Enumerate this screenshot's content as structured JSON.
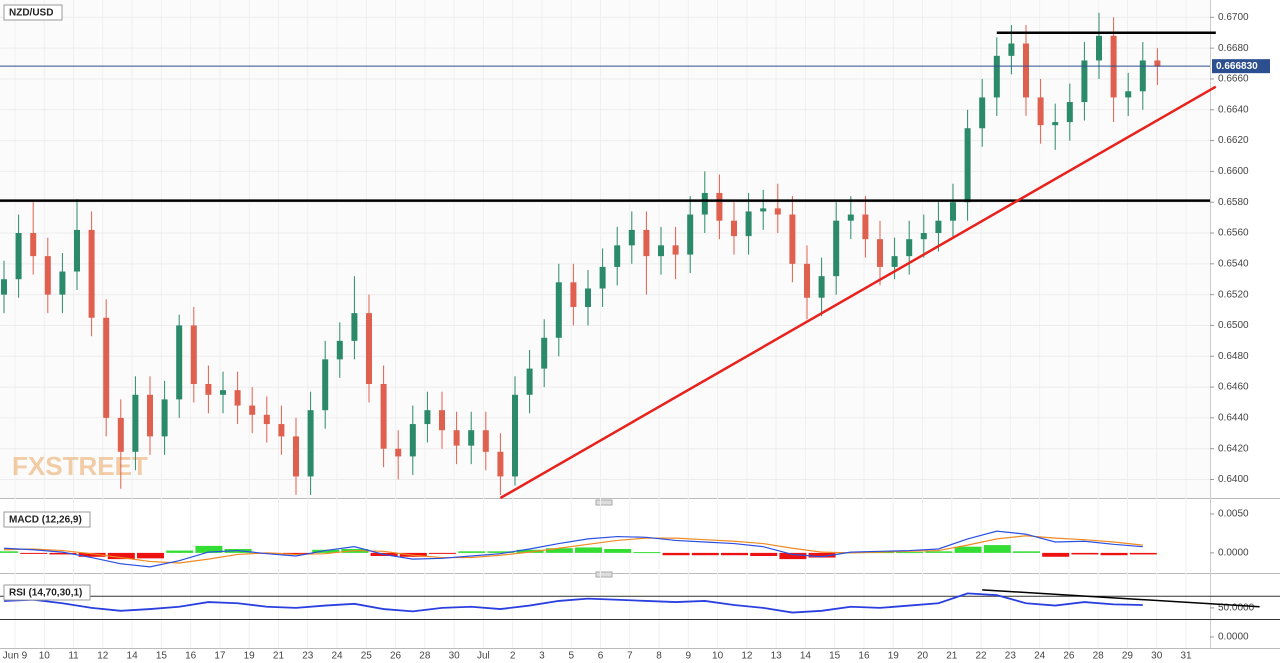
{
  "chart_data": [
    {
      "type": "candlestick",
      "title": "NZD/USD",
      "watermark": "FXSTREET",
      "open": [
        0.652,
        0.653,
        0.656,
        0.6545,
        0.652,
        0.6535,
        0.6562,
        0.6505,
        0.644,
        0.6418,
        0.6455,
        0.6428,
        0.6452,
        0.65,
        0.6462,
        0.6455,
        0.6458,
        0.6448,
        0.6442,
        0.6436,
        0.6428,
        0.6402,
        0.6445,
        0.6478,
        0.649,
        0.6508,
        0.6462,
        0.642,
        0.6415,
        0.6436,
        0.6445,
        0.6432,
        0.6422,
        0.6432,
        0.6418,
        0.6402,
        0.6455,
        0.6472,
        0.6492,
        0.6528,
        0.6512,
        0.6524,
        0.6538,
        0.6552,
        0.6562,
        0.6545,
        0.6552,
        0.6546,
        0.6572,
        0.6586,
        0.6568,
        0.6558,
        0.6574,
        0.6576,
        0.6572,
        0.654,
        0.6518,
        0.6532,
        0.6568,
        0.6572,
        0.6556,
        0.6538,
        0.6545,
        0.6556,
        0.656,
        0.6568,
        0.658,
        0.6628,
        0.6648,
        0.6675,
        0.6683,
        0.6648,
        0.663,
        0.6632,
        0.6645,
        0.6672,
        0.6688,
        0.6648,
        0.6652,
        0.6672
      ],
      "high": [
        0.6542,
        0.6572,
        0.658,
        0.6557,
        0.6547,
        0.6582,
        0.6574,
        0.6517,
        0.6452,
        0.6467,
        0.6467,
        0.6464,
        0.6507,
        0.6512,
        0.6474,
        0.647,
        0.647,
        0.646,
        0.6454,
        0.6448,
        0.644,
        0.6457,
        0.649,
        0.6502,
        0.6532,
        0.652,
        0.6474,
        0.6432,
        0.6448,
        0.6457,
        0.6457,
        0.6444,
        0.6444,
        0.6444,
        0.643,
        0.6467,
        0.6484,
        0.6504,
        0.654,
        0.654,
        0.6536,
        0.655,
        0.6564,
        0.6574,
        0.6574,
        0.6564,
        0.6564,
        0.6584,
        0.66,
        0.6598,
        0.658,
        0.6586,
        0.6588,
        0.6592,
        0.6584,
        0.6552,
        0.6544,
        0.658,
        0.6584,
        0.6584,
        0.6568,
        0.6557,
        0.6568,
        0.6572,
        0.658,
        0.6592,
        0.664,
        0.666,
        0.6687,
        0.6695,
        0.6695,
        0.666,
        0.6644,
        0.6657,
        0.6684,
        0.6703,
        0.67,
        0.6664,
        0.6684,
        0.668
      ],
      "low": [
        0.6508,
        0.6518,
        0.6533,
        0.6508,
        0.6508,
        0.6523,
        0.6493,
        0.6428,
        0.6394,
        0.6406,
        0.6416,
        0.6416,
        0.644,
        0.645,
        0.6443,
        0.6443,
        0.6436,
        0.643,
        0.6424,
        0.6416,
        0.639,
        0.639,
        0.6433,
        0.6466,
        0.6478,
        0.645,
        0.6408,
        0.64,
        0.6403,
        0.6424,
        0.642,
        0.641,
        0.641,
        0.6406,
        0.639,
        0.6396,
        0.6443,
        0.646,
        0.648,
        0.65,
        0.65,
        0.6512,
        0.6526,
        0.654,
        0.652,
        0.6533,
        0.653,
        0.6534,
        0.656,
        0.6556,
        0.6546,
        0.6546,
        0.6562,
        0.656,
        0.6528,
        0.6504,
        0.6506,
        0.652,
        0.6556,
        0.6544,
        0.6526,
        0.653,
        0.6533,
        0.6544,
        0.6548,
        0.6556,
        0.6568,
        0.6616,
        0.6636,
        0.6663,
        0.6636,
        0.6618,
        0.6614,
        0.662,
        0.6633,
        0.666,
        0.6632,
        0.6636,
        0.664,
        0.6656
      ],
      "close": [
        0.653,
        0.656,
        0.6545,
        0.652,
        0.6535,
        0.6562,
        0.6505,
        0.644,
        0.6418,
        0.6455,
        0.6428,
        0.6452,
        0.65,
        0.6462,
        0.6455,
        0.6458,
        0.6448,
        0.6442,
        0.6436,
        0.6428,
        0.6402,
        0.6445,
        0.6478,
        0.649,
        0.6508,
        0.6462,
        0.642,
        0.6415,
        0.6436,
        0.6445,
        0.6432,
        0.6422,
        0.6432,
        0.6418,
        0.6402,
        0.6455,
        0.6472,
        0.6492,
        0.6528,
        0.6512,
        0.6524,
        0.6538,
        0.6552,
        0.6562,
        0.6545,
        0.6552,
        0.6546,
        0.6572,
        0.6586,
        0.6568,
        0.6558,
        0.6574,
        0.6576,
        0.6572,
        0.654,
        0.6518,
        0.6532,
        0.6568,
        0.6572,
        0.6556,
        0.6538,
        0.6545,
        0.6556,
        0.656,
        0.6568,
        0.658,
        0.6628,
        0.6648,
        0.6675,
        0.6683,
        0.6648,
        0.663,
        0.6632,
        0.6645,
        0.6672,
        0.6688,
        0.6648,
        0.6652,
        0.6672,
        0.6668
      ],
      "up_color": "#2b8a6a",
      "down_color": "#e0604f",
      "ylim": [
        0.6388,
        0.6708
      ],
      "yticks": [
        {
          "value": 0.64,
          "label": "0.6400"
        },
        {
          "value": 0.642,
          "label": "0.6420"
        },
        {
          "value": 0.644,
          "label": "0.6440"
        },
        {
          "value": 0.646,
          "label": "0.6460"
        },
        {
          "value": 0.648,
          "label": "0.6480"
        },
        {
          "value": 0.65,
          "label": "0.6500"
        },
        {
          "value": 0.652,
          "label": "0.6520"
        },
        {
          "value": 0.654,
          "label": "0.6540"
        },
        {
          "value": 0.656,
          "label": "0.6560"
        },
        {
          "value": 0.658,
          "label": "0.6580"
        },
        {
          "value": 0.66,
          "label": "0.6600"
        },
        {
          "value": 0.662,
          "label": "0.6620"
        },
        {
          "value": 0.664,
          "label": "0.6640"
        },
        {
          "value": 0.666,
          "label": "0.6660"
        },
        {
          "value": 0.668,
          "label": "0.6680"
        },
        {
          "value": 0.67,
          "label": "0.6700"
        }
      ],
      "grid": true,
      "hlines": [
        {
          "value": 0.6581,
          "color": "#000000"
        }
      ],
      "segments": [
        {
          "x": [
            68,
            83
          ],
          "y": [
            0.669,
            0.669
          ],
          "color": "#000000"
        },
        {
          "x": [
            34,
            83
          ],
          "y": [
            0.6388,
            0.6655
          ],
          "color": "#e8211c"
        }
      ],
      "last_price": {
        "value": 0.66683,
        "label": "0.666830",
        "color": "#2c4f8f"
      },
      "x_labels": [
        "Jun 9",
        "10",
        "11",
        "12",
        "14",
        "15",
        "16",
        "17",
        "19",
        "21",
        "23",
        "24",
        "25",
        "26",
        "28",
        "30",
        "Jul",
        "2",
        "3",
        "5",
        "6",
        "7",
        "8",
        "9",
        "10",
        "12",
        "13",
        "14",
        "15",
        "16",
        "19",
        "20",
        "21",
        "22",
        "23",
        "24",
        "26",
        "28",
        "29",
        "30",
        "31"
      ]
    },
    {
      "type": "macd",
      "title": "MACD (12,26,9)",
      "macd": [
        0.0006,
        0.0004,
        0.0001,
        -0.0006,
        -0.0014,
        -0.0018,
        -0.001,
        0.0001,
        0.0003,
        -0.0001,
        -0.0004,
        0.0003,
        0.0008,
        -0.0002,
        -0.0008,
        -0.0007,
        -0.0004,
        -0.0001,
        0.0005,
        0.0012,
        0.0018,
        0.0021,
        0.002,
        0.0016,
        0.0014,
        0.0012,
        0.0008,
        -0.0002,
        -0.0005,
        0.0001,
        0.0002,
        0.0003,
        0.0005,
        0.0018,
        0.0028,
        0.0024,
        0.0014,
        0.0015,
        0.0011,
        0.0008
      ],
      "signal": [
        0.0004,
        0.0005,
        0.0003,
        -0.0001,
        -0.0006,
        -0.0011,
        -0.0013,
        -0.0008,
        -0.0002,
        0.0,
        -0.0002,
        -0.0001,
        0.0003,
        0.0002,
        -0.0003,
        -0.0006,
        -0.0006,
        -0.0003,
        0.0001,
        0.0006,
        0.0011,
        0.0016,
        0.0019,
        0.0019,
        0.0017,
        0.0015,
        0.0012,
        0.0006,
        0.0001,
        0.0,
        0.0001,
        0.0002,
        0.0003,
        0.001,
        0.0018,
        0.0022,
        0.0019,
        0.0017,
        0.0014,
        0.001
      ],
      "histogram": [
        0.0002,
        -0.0001,
        -0.0002,
        -0.0005,
        -0.0008,
        -0.0007,
        0.0003,
        0.0009,
        0.0005,
        -0.0001,
        -0.0002,
        0.0004,
        0.0005,
        -0.0004,
        -0.0005,
        -0.0001,
        0.0002,
        0.0002,
        0.0004,
        0.0006,
        0.0007,
        0.0005,
        0.0001,
        -0.0003,
        -0.0003,
        -0.0003,
        -0.0004,
        -0.0008,
        -0.0006,
        0.0001,
        0.0001,
        0.0001,
        0.0002,
        0.0008,
        0.001,
        0.0002,
        -0.0005,
        -0.0002,
        -0.0003,
        -0.0002
      ],
      "macd_color": "#2a50e0",
      "signal_color": "#f08a24",
      "positive_color": "#33dd33",
      "negative_color": "#ee1111",
      "ylim": [
        -0.0022,
        0.0059
      ],
      "yticks": [
        {
          "value": 0.005,
          "label": "0.0050"
        },
        {
          "value": 0,
          "label": "0.0000"
        }
      ]
    },
    {
      "type": "rsi",
      "title": "RSI (14,70,30,1)",
      "values": [
        62,
        64,
        58,
        50,
        45,
        48,
        52,
        60,
        58,
        52,
        50,
        54,
        57,
        48,
        44,
        50,
        52,
        48,
        54,
        62,
        66,
        64,
        62,
        60,
        62,
        55,
        50,
        42,
        45,
        52,
        50,
        54,
        58,
        75,
        72,
        58,
        54,
        60,
        56,
        55
      ],
      "color": "#2a3fe0",
      "ylim": [
        -19,
        98
      ],
      "yticks": [
        {
          "value": 50,
          "label": "50.0000"
        },
        {
          "value": 0,
          "label": "0.0000"
        }
      ],
      "levels": [
        70,
        30
      ],
      "segments": [
        {
          "x": [
            67,
            86
          ],
          "y": [
            81,
            52
          ],
          "color": "#000000"
        }
      ]
    }
  ]
}
